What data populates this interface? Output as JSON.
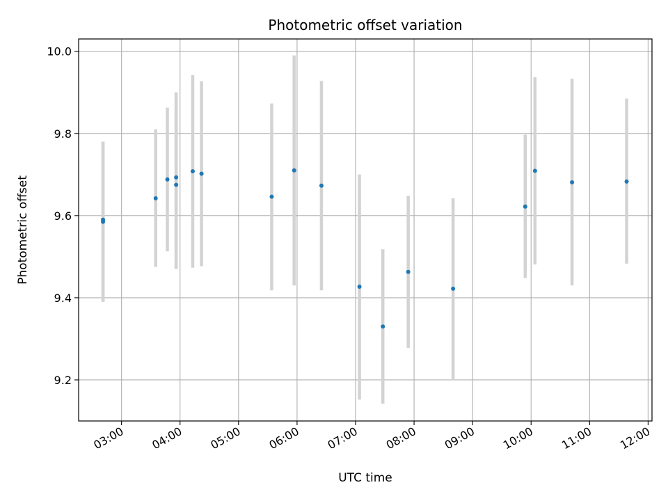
{
  "chart_data": {
    "type": "scatter",
    "title": "Photometric offset variation",
    "xlabel": "UTC time",
    "ylabel": "Photometric offset",
    "x_unit": "hours UTC",
    "xlim": [
      "02:16",
      "12:04"
    ],
    "ylim": [
      9.1,
      10.03
    ],
    "x_ticks": [
      "03:00",
      "04:00",
      "05:00",
      "06:00",
      "07:00",
      "08:00",
      "09:00",
      "10:00",
      "11:00",
      "12:00"
    ],
    "y_ticks": [
      "9.2",
      "9.4",
      "9.6",
      "9.8",
      "10.0"
    ],
    "grid": true,
    "point_color": "#1f77b4",
    "errorbar_color": "#d3d3d3",
    "series": [
      {
        "points": [
          {
            "x": "02:41",
            "y": 9.585,
            "err_low": 9.39,
            "err_high": 9.78
          },
          {
            "x": "02:41",
            "y": 9.59,
            "err_low": 9.39,
            "err_high": 9.78
          },
          {
            "x": "03:35",
            "y": 9.642,
            "err_low": 9.475,
            "err_high": 9.81
          },
          {
            "x": "03:47",
            "y": 9.688,
            "err_low": 9.513,
            "err_high": 9.863
          },
          {
            "x": "03:56",
            "y": 9.693,
            "err_low": 9.47,
            "err_high": 9.9
          },
          {
            "x": "03:56",
            "y": 9.675,
            "err_low": 9.47,
            "err_high": 9.9
          },
          {
            "x": "04:13",
            "y": 9.708,
            "err_low": 9.473,
            "err_high": 9.942
          },
          {
            "x": "04:22",
            "y": 9.702,
            "err_low": 9.477,
            "err_high": 9.927
          },
          {
            "x": "05:34",
            "y": 9.646,
            "err_low": 9.418,
            "err_high": 9.873
          },
          {
            "x": "05:57",
            "y": 9.71,
            "err_low": 9.43,
            "err_high": 9.99
          },
          {
            "x": "06:25",
            "y": 9.673,
            "err_low": 9.418,
            "err_high": 9.928
          },
          {
            "x": "07:04",
            "y": 9.427,
            "err_low": 9.152,
            "err_high": 9.7
          },
          {
            "x": "07:28",
            "y": 9.33,
            "err_low": 9.142,
            "err_high": 9.518
          },
          {
            "x": "07:54",
            "y": 9.463,
            "err_low": 9.278,
            "err_high": 9.648
          },
          {
            "x": "08:40",
            "y": 9.422,
            "err_low": 9.2,
            "err_high": 9.642
          },
          {
            "x": "09:54",
            "y": 9.622,
            "err_low": 9.448,
            "err_high": 9.797
          },
          {
            "x": "10:04",
            "y": 9.709,
            "err_low": 9.481,
            "err_high": 9.937
          },
          {
            "x": "10:42",
            "y": 9.681,
            "err_low": 9.43,
            "err_high": 9.933
          },
          {
            "x": "11:38",
            "y": 9.683,
            "err_low": 9.483,
            "err_high": 9.885
          }
        ]
      }
    ]
  }
}
